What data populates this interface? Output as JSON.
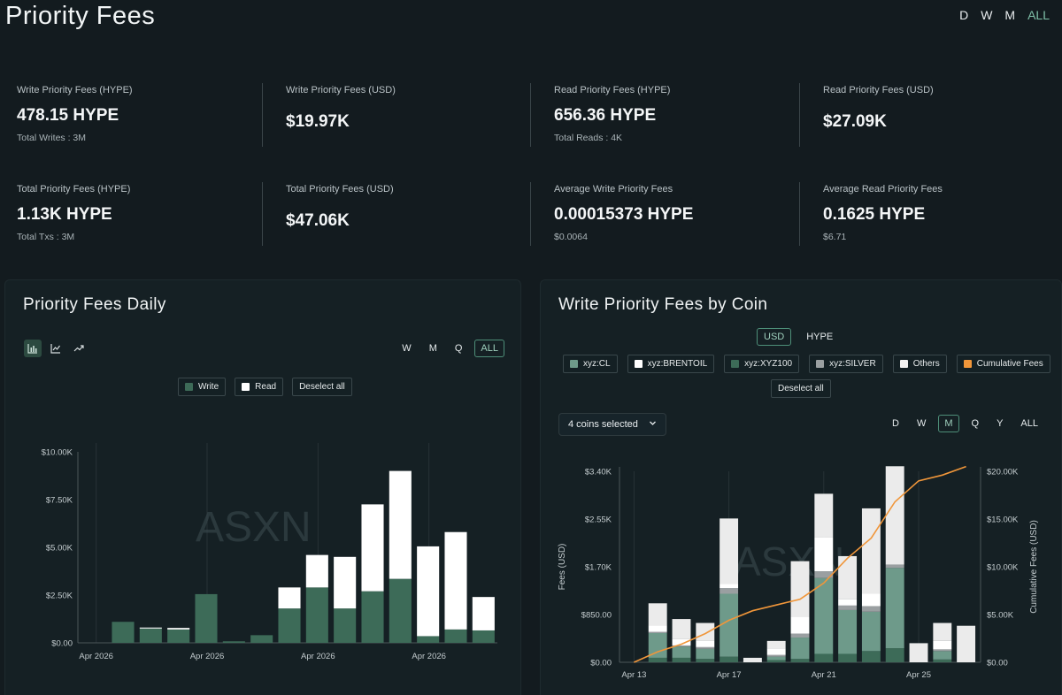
{
  "page": {
    "title": "Priority Fees"
  },
  "range_tabs": [
    {
      "label": "D",
      "active": false
    },
    {
      "label": "W",
      "active": false
    },
    {
      "label": "M",
      "active": false
    },
    {
      "label": "ALL",
      "active": true
    }
  ],
  "stats": [
    {
      "label": "Write Priority Fees (HYPE)",
      "value": "478.15 HYPE",
      "sub": "Total Writes : 3M"
    },
    {
      "label": "Write Priority Fees (USD)",
      "value": "$19.97K",
      "sub": ""
    },
    {
      "label": "Read Priority Fees (HYPE)",
      "value": "656.36 HYPE",
      "sub": "Total Reads : 4K"
    },
    {
      "label": "Read Priority Fees (USD)",
      "value": "$27.09K",
      "sub": ""
    },
    {
      "label": "Total Priority Fees (HYPE)",
      "value": "1.13K HYPE",
      "sub": "Total Txs : 3M"
    },
    {
      "label": "Total Priority Fees (USD)",
      "value": "$47.06K",
      "sub": ""
    },
    {
      "label": "Average Write Priority Fees",
      "value": "0.00015373 HYPE",
      "sub": "$0.0064"
    },
    {
      "label": "Average Read Priority Fees",
      "value": "0.1625 HYPE",
      "sub": "$6.71"
    }
  ],
  "left_panel": {
    "title": "Priority Fees Daily",
    "chart_type_icons": [
      "bar-chart-icon",
      "line-chart-icon",
      "trend-icon"
    ],
    "tabs": [
      {
        "label": "W",
        "active": false
      },
      {
        "label": "M",
        "active": false
      },
      {
        "label": "Q",
        "active": false
      },
      {
        "label": "ALL",
        "active": true
      }
    ],
    "legend": [
      {
        "label": "Write",
        "color": "#3d6b58"
      },
      {
        "label": "Read",
        "color": "#ffffff"
      }
    ],
    "deselect_label": "Deselect all",
    "watermark": "ASXN"
  },
  "right_panel": {
    "title": "Write Priority Fees by Coin",
    "currency_toggle": [
      {
        "label": "USD",
        "active": true
      },
      {
        "label": "HYPE",
        "active": false
      }
    ],
    "legend": [
      {
        "label": "xyz:CL",
        "color": "#6e9a8a"
      },
      {
        "label": "xyz:BRENTOIL",
        "color": "#ffffff"
      },
      {
        "label": "xyz:XYZ100",
        "color": "#3d6b58"
      },
      {
        "label": "xyz:SILVER",
        "color": "#9a9fa1"
      },
      {
        "label": "Others",
        "color": "#f2f2f2"
      },
      {
        "label": "Cumulative Fees",
        "color": "#f0963a"
      }
    ],
    "deselect_label": "Deselect all",
    "coin_select": "4 coins selected",
    "tabs": [
      {
        "label": "D",
        "active": false
      },
      {
        "label": "W",
        "active": false
      },
      {
        "label": "M",
        "active": true
      },
      {
        "label": "Q",
        "active": false
      },
      {
        "label": "Y",
        "active": false
      },
      {
        "label": "ALL",
        "active": false
      }
    ],
    "watermark": "ASXN"
  },
  "chart_data": [
    {
      "type": "bar",
      "stacked": true,
      "title": "Priority Fees Daily",
      "ylabel": "",
      "ylim": [
        0,
        10000
      ],
      "yticks": [
        "$0.00",
        "$2.50K",
        "$5.00K",
        "$7.50K",
        "$10.00K"
      ],
      "ytick_values": [
        0,
        2500,
        5000,
        7500,
        10000
      ],
      "xtick_labels": [
        "Apr 2026",
        "Apr 2026",
        "Apr 2026",
        "Apr 2026"
      ],
      "xtick_positions": [
        0,
        4,
        8,
        12
      ],
      "categories": [
        "1",
        "2",
        "3",
        "4",
        "5",
        "6",
        "7",
        "8",
        "9",
        "10",
        "11",
        "12",
        "13",
        "14",
        "15"
      ],
      "series": [
        {
          "name": "Write",
          "color": "#3d6b58",
          "values": [
            0,
            1100,
            750,
            700,
            2550,
            80,
            400,
            1800,
            2900,
            1800,
            2700,
            3350,
            350,
            700,
            650
          ]
        },
        {
          "name": "Read",
          "color": "#ffffff",
          "values": [
            0,
            0,
            50,
            80,
            0,
            0,
            0,
            1100,
            1700,
            2700,
            4550,
            5650,
            4700,
            5100,
            1750
          ]
        }
      ]
    },
    {
      "type": "bar",
      "stacked": true,
      "title": "Write Priority Fees by Coin",
      "ylabel": "Fees (USD)",
      "y2label": "Cumulative Fees (USD)",
      "ylim": [
        0,
        3400
      ],
      "y2lim": [
        0,
        20000
      ],
      "yticks": [
        "$0.00",
        "$850.00",
        "$1.70K",
        "$2.55K",
        "$3.40K"
      ],
      "ytick_values": [
        0,
        850,
        1700,
        2550,
        3400
      ],
      "y2ticks": [
        "$0.00",
        "$5.00K",
        "$10.00K",
        "$15.00K",
        "$20.00K"
      ],
      "y2tick_values": [
        0,
        5000,
        10000,
        15000,
        20000
      ],
      "xtick_labels": [
        "Apr 13",
        "Apr 17",
        "Apr 21",
        "Apr 25"
      ],
      "xtick_positions": [
        0,
        4,
        8,
        12
      ],
      "categories": [
        "Apr 13",
        "Apr 14",
        "Apr 15",
        "Apr 16",
        "Apr 17",
        "Apr 18",
        "Apr 19",
        "Apr 20",
        "Apr 21",
        "Apr 22",
        "Apr 23",
        "Apr 24",
        "Apr 25",
        "Apr 26",
        "Apr 27"
      ],
      "series": [
        {
          "name": "xyz:XYZ100",
          "color": "#3d6b58",
          "values": [
            0,
            80,
            80,
            60,
            100,
            0,
            40,
            60,
            150,
            150,
            200,
            250,
            0,
            50,
            0
          ]
        },
        {
          "name": "xyz:CL",
          "color": "#6e9a8a",
          "values": [
            0,
            440,
            200,
            180,
            1120,
            0,
            60,
            380,
            1350,
            780,
            700,
            1430,
            0,
            150,
            0
          ]
        },
        {
          "name": "xyz:SILVER",
          "color": "#9a9fa1",
          "values": [
            0,
            20,
            20,
            30,
            100,
            0,
            30,
            70,
            120,
            80,
            100,
            60,
            0,
            30,
            0
          ]
        },
        {
          "name": "xyz:BRENTOIL",
          "color": "#ffffff",
          "values": [
            0,
            120,
            120,
            120,
            80,
            0,
            120,
            300,
            600,
            120,
            220,
            0,
            0,
            150,
            0
          ]
        },
        {
          "name": "Others",
          "color": "#ebebeb",
          "values": [
            0,
            390,
            350,
            310,
            1160,
            80,
            130,
            990,
            780,
            760,
            1520,
            1750,
            340,
            320,
            650
          ]
        }
      ],
      "cumulative": {
        "name": "Cumulative Fees",
        "color": "#f0963a",
        "values": [
          0,
          1100,
          1900,
          3000,
          4400,
          5400,
          6000,
          6600,
          8300,
          10900,
          13000,
          16800,
          19000,
          19600,
          20500
        ]
      }
    }
  ]
}
